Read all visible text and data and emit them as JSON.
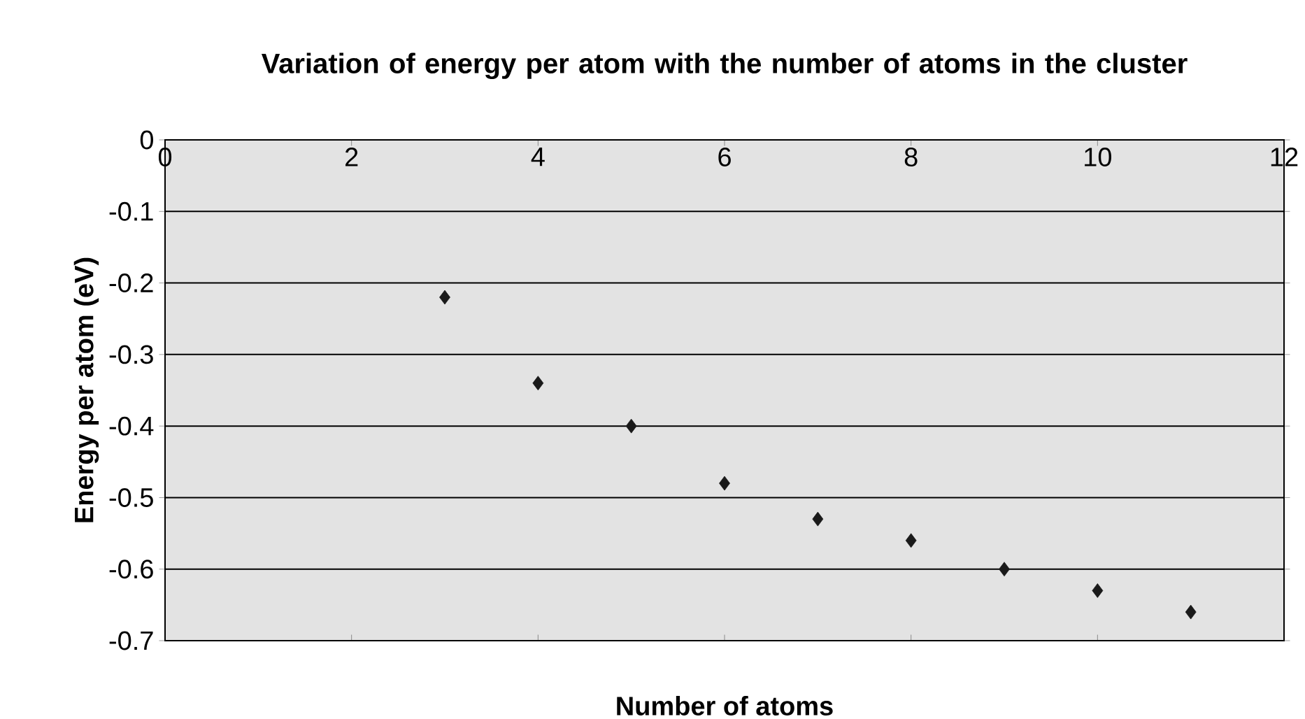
{
  "chart_data": {
    "type": "scatter",
    "title": "Variation of energy per atom with the number of atoms in the cluster",
    "xlabel": "Number of atoms",
    "ylabel": "Energy per atom (eV)",
    "x": [
      3,
      4,
      5,
      6,
      7,
      8,
      9,
      10,
      11
    ],
    "series": [
      {
        "color": "#1a1a1a",
        "values": [
          -0.22,
          -0.34,
          -0.4,
          -0.48,
          -0.53,
          -0.56,
          -0.6,
          -0.63,
          -0.66
        ]
      }
    ],
    "marker": "diamond",
    "xlim": [
      0,
      12
    ],
    "ylim": [
      -0.7,
      0
    ],
    "xticks": [
      0,
      2,
      4,
      6,
      8,
      10,
      12
    ],
    "yticks": [
      -0.7,
      -0.6,
      -0.5,
      -0.4,
      -0.3,
      -0.2,
      -0.1,
      0
    ],
    "grid": "y"
  }
}
